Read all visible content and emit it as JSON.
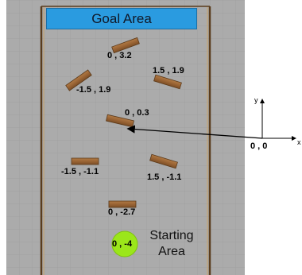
{
  "goal": {
    "label": "Goal Area",
    "color": "#2a9be0"
  },
  "start": {
    "label_line1": "Starting",
    "label_line2": "Area",
    "coord": "0 , -4",
    "color": "#9be61a"
  },
  "obstacles": [
    {
      "label": "0 , 3.2"
    },
    {
      "label": "1.5 , 1.9"
    },
    {
      "label": "-1.5 , 1.9"
    },
    {
      "label": "0 , 0.3"
    },
    {
      "label": "-1.5 , -1.1"
    },
    {
      "label": "1.5 , -1.1"
    },
    {
      "label": "0 , -2.7"
    }
  ],
  "axes": {
    "x_label": "x",
    "y_label": "y",
    "origin_label": "0 , 0"
  }
}
